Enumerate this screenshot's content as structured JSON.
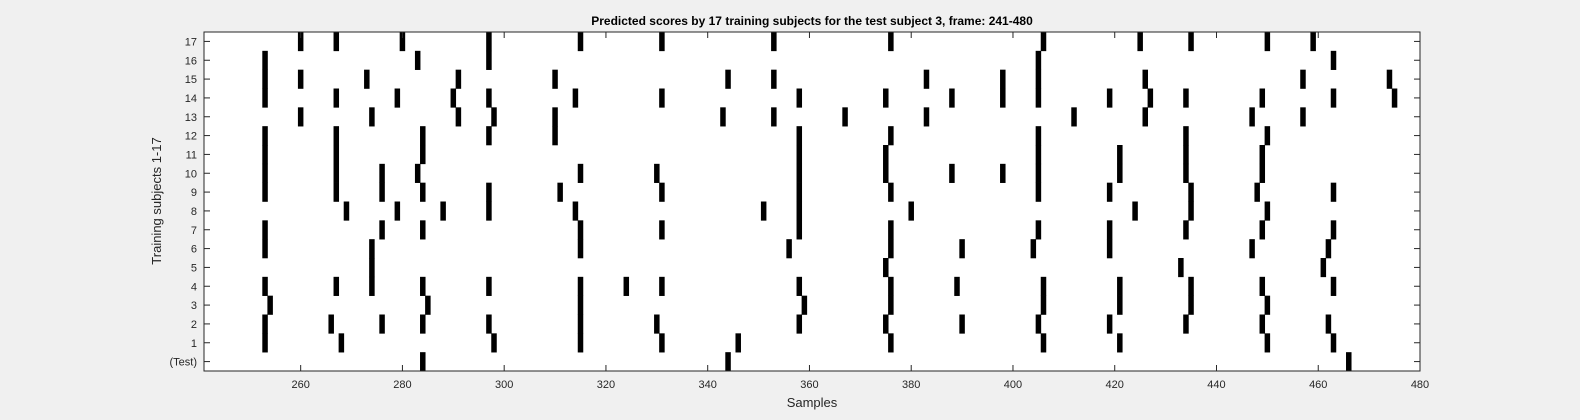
{
  "chart_data": {
    "type": "raster",
    "title": "Predicted scores by 17 training subjects for the test subject 3, frame: 241-480",
    "xlabel": "Samples",
    "ylabel": "Training subjects 1-17",
    "xlim": [
      241,
      480
    ],
    "xticks": [
      260,
      280,
      300,
      320,
      340,
      360,
      380,
      400,
      420,
      440,
      460,
      480
    ],
    "rows": [
      "(Test)",
      "1",
      "2",
      "3",
      "4",
      "5",
      "6",
      "7",
      "8",
      "9",
      "10",
      "11",
      "12",
      "13",
      "14",
      "15",
      "16",
      "17"
    ],
    "events": {
      "(Test)": [
        284,
        344,
        466
      ],
      "1": [
        253,
        268,
        298,
        315,
        331,
        346,
        376,
        406,
        421,
        450,
        463
      ],
      "2": [
        253,
        266,
        276,
        284,
        297,
        315,
        330,
        358,
        375,
        390,
        405,
        419,
        434,
        449,
        462
      ],
      "3": [
        254,
        285,
        315,
        359,
        376,
        406,
        421,
        435,
        450
      ],
      "4": [
        253,
        267,
        274,
        284,
        297,
        315,
        324,
        331,
        358,
        376,
        389,
        406,
        421,
        435,
        449,
        463
      ],
      "5": [
        274,
        375,
        433,
        461
      ],
      "6": [
        253,
        274,
        315,
        356,
        376,
        390,
        404,
        419,
        447,
        462
      ],
      "7": [
        253,
        276,
        284,
        315,
        331,
        358,
        376,
        405,
        419,
        434,
        449,
        463
      ],
      "8": [
        269,
        279,
        288,
        297,
        314,
        351,
        358,
        380,
        424,
        435,
        450
      ],
      "9": [
        253,
        267,
        276,
        284,
        297,
        311,
        331,
        358,
        376,
        405,
        419,
        435,
        448,
        463
      ],
      "10": [
        253,
        267,
        276,
        283,
        315,
        330,
        358,
        375,
        388,
        398,
        405,
        421,
        434,
        449
      ],
      "11": [
        253,
        267,
        284,
        358,
        375,
        405,
        421,
        434,
        449
      ],
      "12": [
        253,
        267,
        284,
        297,
        310,
        358,
        376,
        405,
        434,
        450
      ],
      "13": [
        260,
        274,
        291,
        298,
        310,
        343,
        353,
        367,
        383,
        412,
        426,
        447,
        457
      ],
      "14": [
        253,
        267,
        279,
        290,
        297,
        314,
        331,
        358,
        375,
        388,
        398,
        405,
        419,
        427,
        434,
        449,
        463,
        475
      ],
      "15": [
        253,
        260,
        273,
        291,
        310,
        344,
        353,
        383,
        398,
        405,
        426,
        457,
        474
      ],
      "16": [
        253,
        283,
        297,
        405,
        463
      ],
      "17": [
        260,
        267,
        280,
        297,
        315,
        331,
        353,
        376,
        406,
        425,
        435,
        450,
        459
      ]
    }
  }
}
